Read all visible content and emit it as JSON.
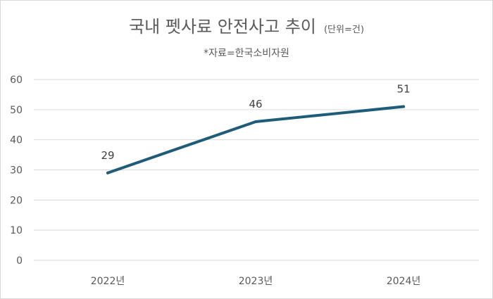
{
  "chart_data": {
    "type": "line",
    "title": "국내 펫사료 안전사고 추이",
    "unit": "(단위=건)",
    "subtitle": "*자료=한국소비자원",
    "categories": [
      "2022년",
      "2023년",
      "2024년"
    ],
    "series": [
      {
        "values": [
          29,
          46,
          51
        ],
        "color": "#1f5c7a"
      }
    ],
    "yticks": [
      0,
      10,
      20,
      30,
      40,
      50,
      60
    ],
    "ylim": [
      0,
      60
    ],
    "grid": true,
    "data_labels": true
  }
}
